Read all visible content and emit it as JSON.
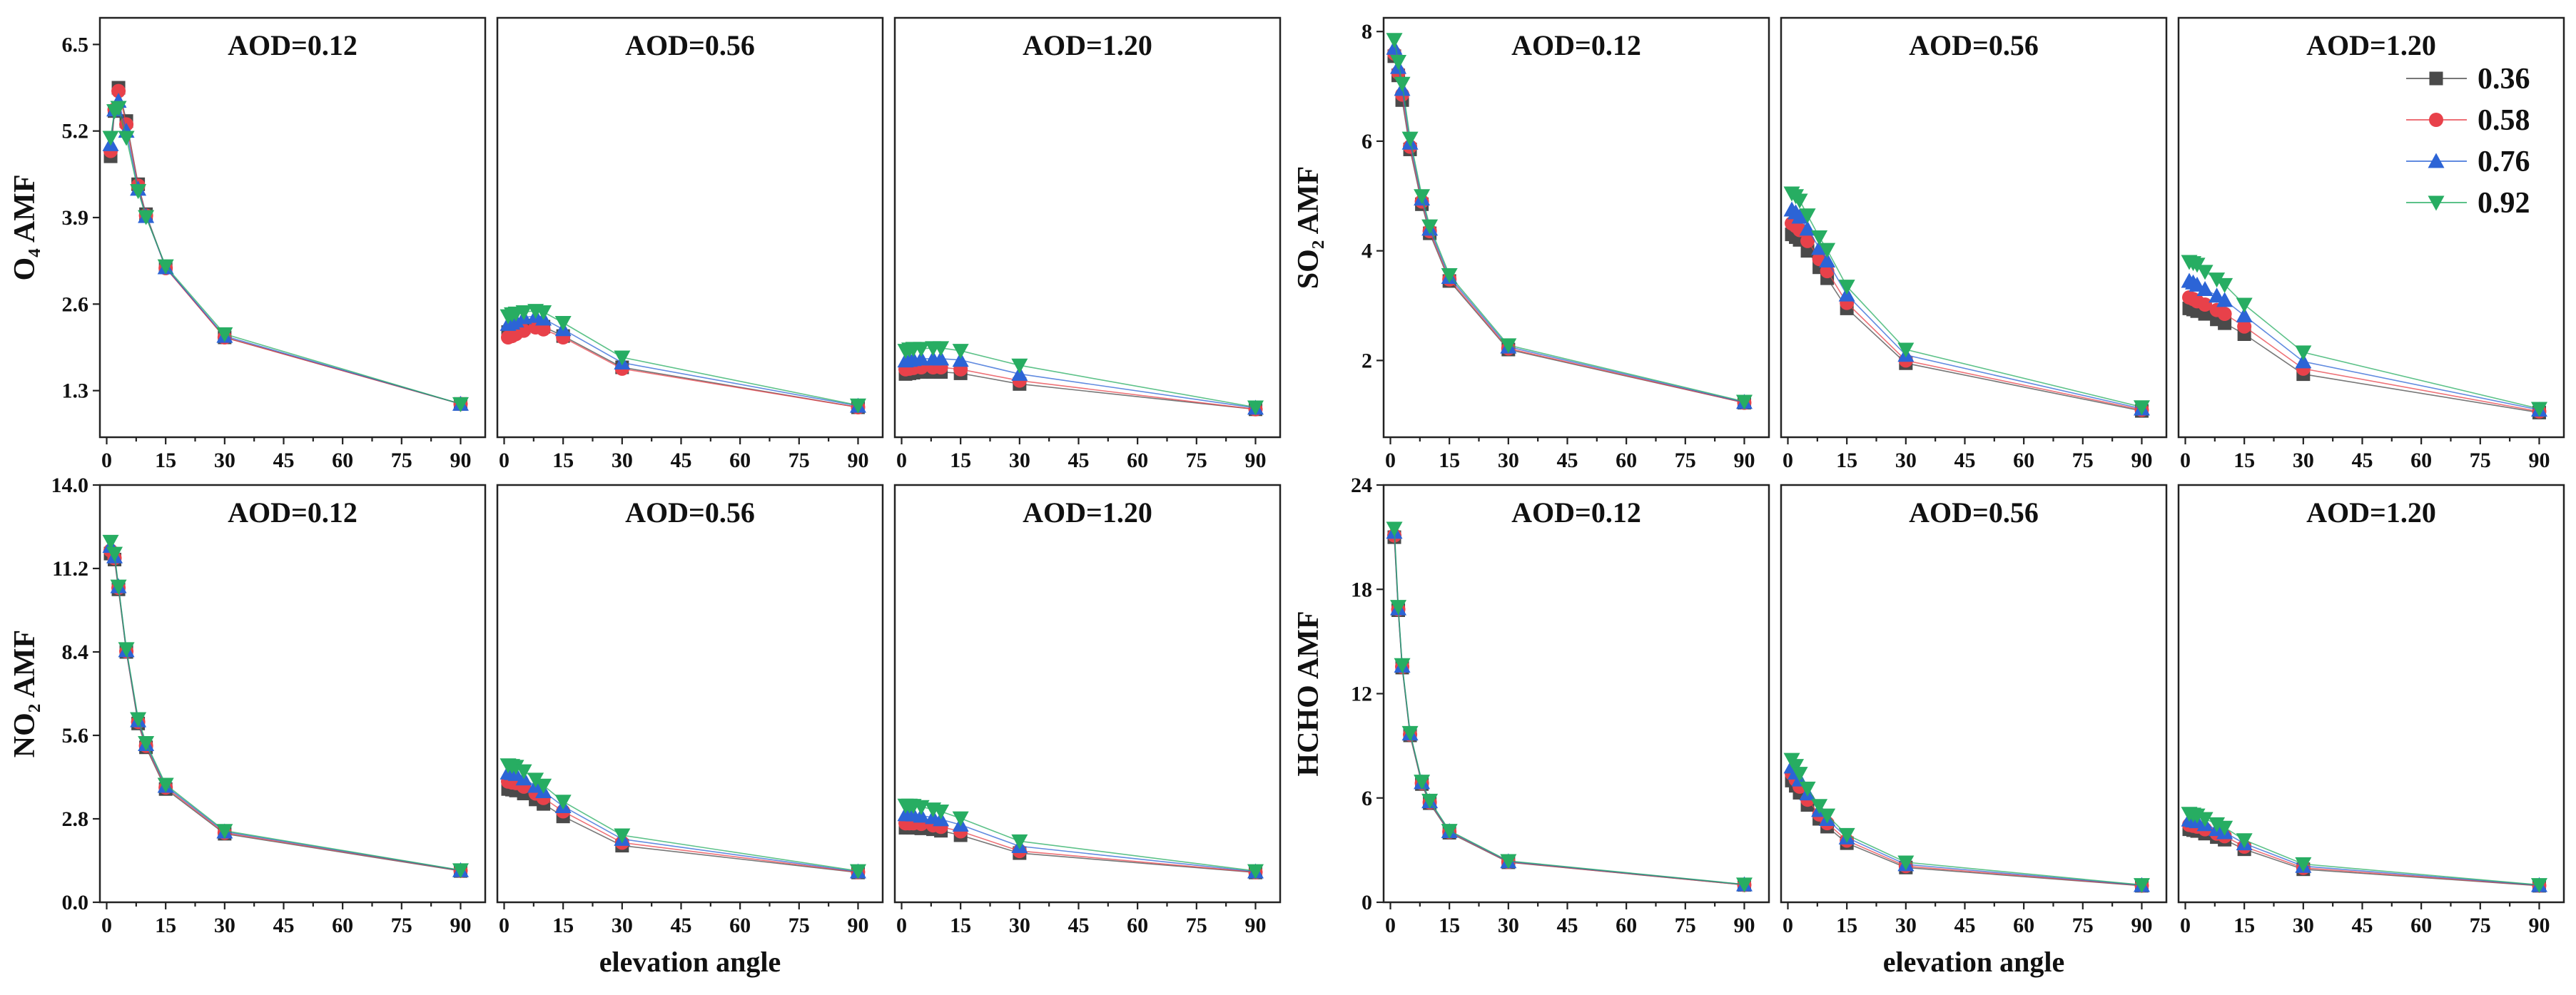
{
  "figure": {
    "xlabel": "elevation angle",
    "legend_placement": "top-right",
    "legend_labels": [
      "0.36",
      "0.58",
      "0.76",
      "0.92"
    ],
    "series_colors": [
      "#4a4a4a",
      "#e8414a",
      "#2c64d6",
      "#27ad62"
    ],
    "series_markers": [
      "square",
      "circle",
      "triangle-up",
      "triangle-down"
    ]
  },
  "chart_data": [
    {
      "type": "line",
      "group": "top-left",
      "panel": 0,
      "title": "AOD=0.12",
      "ylabel": "O₄ AMF",
      "xlabel": "",
      "xlim": [
        -1,
        93
      ],
      "ylim": [
        0.6,
        6.9
      ],
      "xticks": [
        "0",
        "15",
        "30",
        "45",
        "60",
        "75",
        "90"
      ],
      "yticks": [
        "1.3",
        "2.6",
        "3.9",
        "5.2",
        "6.5"
      ],
      "ytickvals": [
        1.3,
        2.6,
        3.9,
        5.2,
        6.5
      ],
      "x": [
        1,
        2,
        3,
        5,
        8,
        10,
        15,
        30,
        90
      ],
      "series": [
        {
          "name": "0.36",
          "values": [
            4.82,
            5.5,
            5.85,
            5.35,
            4.4,
            3.95,
            3.15,
            2.1,
            1.1
          ]
        },
        {
          "name": "0.58",
          "values": [
            4.9,
            5.52,
            5.8,
            5.3,
            4.38,
            3.93,
            3.14,
            2.1,
            1.1
          ]
        },
        {
          "name": "0.76",
          "values": [
            5.0,
            5.52,
            5.65,
            5.2,
            4.33,
            3.92,
            3.15,
            2.12,
            1.1
          ]
        },
        {
          "name": "0.92",
          "values": [
            5.1,
            5.5,
            5.55,
            5.1,
            4.3,
            3.91,
            3.17,
            2.15,
            1.1
          ]
        }
      ]
    },
    {
      "type": "line",
      "group": "top-left",
      "panel": 1,
      "title": "AOD=0.56",
      "ylabel": "",
      "xlabel": "",
      "xlim": [
        -1,
        93
      ],
      "ylim": [
        0.6,
        6.9
      ],
      "xticks": [
        "0",
        "15",
        "30",
        "45",
        "60",
        "75",
        "90"
      ],
      "yticks": [],
      "ytickvals": [],
      "x": [
        1,
        2,
        3,
        5,
        8,
        10,
        15,
        30,
        90
      ],
      "series": [
        {
          "name": "0.36",
          "values": [
            2.18,
            2.2,
            2.22,
            2.25,
            2.28,
            2.26,
            2.12,
            1.65,
            1.05
          ]
        },
        {
          "name": "0.58",
          "values": [
            2.1,
            2.12,
            2.15,
            2.2,
            2.25,
            2.22,
            2.1,
            1.63,
            1.05
          ]
        },
        {
          "name": "0.76",
          "values": [
            2.3,
            2.32,
            2.35,
            2.4,
            2.42,
            2.38,
            2.22,
            1.72,
            1.07
          ]
        },
        {
          "name": "0.92",
          "values": [
            2.42,
            2.45,
            2.46,
            2.48,
            2.5,
            2.48,
            2.32,
            1.8,
            1.08
          ]
        }
      ]
    },
    {
      "type": "line",
      "group": "top-left",
      "panel": 2,
      "title": "AOD=1.20",
      "ylabel": "",
      "xlabel": "",
      "xlim": [
        -1,
        93
      ],
      "ylim": [
        0.6,
        6.9
      ],
      "xticks": [
        "0",
        "15",
        "30",
        "45",
        "60",
        "75",
        "90"
      ],
      "yticks": [],
      "ytickvals": [],
      "x": [
        1,
        2,
        3,
        5,
        8,
        10,
        15,
        30,
        90
      ],
      "series": [
        {
          "name": "0.36",
          "values": [
            1.55,
            1.56,
            1.57,
            1.58,
            1.58,
            1.58,
            1.56,
            1.4,
            1.02
          ]
        },
        {
          "name": "0.58",
          "values": [
            1.62,
            1.63,
            1.64,
            1.65,
            1.65,
            1.65,
            1.62,
            1.45,
            1.02
          ]
        },
        {
          "name": "0.76",
          "values": [
            1.75,
            1.76,
            1.77,
            1.78,
            1.78,
            1.78,
            1.76,
            1.55,
            1.04
          ]
        },
        {
          "name": "0.92",
          "values": [
            1.9,
            1.92,
            1.93,
            1.93,
            1.94,
            1.94,
            1.9,
            1.68,
            1.05
          ]
        }
      ]
    },
    {
      "type": "line",
      "group": "top-right",
      "panel": 0,
      "title": "AOD=0.12",
      "ylabel": "SO₂ AMF",
      "xlabel": "",
      "xlim": [
        -1,
        93
      ],
      "ylim": [
        0.6,
        8.25
      ],
      "xticks": [
        "0",
        "15",
        "30",
        "45",
        "60",
        "75",
        "90"
      ],
      "yticks": [
        "2",
        "4",
        "6",
        "8"
      ],
      "ytickvals": [
        2,
        4,
        6,
        8
      ],
      "x": [
        1,
        2,
        3,
        5,
        8,
        10,
        15,
        30,
        90
      ],
      "series": [
        {
          "name": "0.36",
          "values": [
            7.55,
            7.2,
            6.75,
            5.85,
            4.85,
            4.32,
            3.45,
            2.2,
            1.23
          ]
        },
        {
          "name": "0.58",
          "values": [
            7.6,
            7.25,
            6.85,
            5.9,
            4.9,
            4.36,
            3.48,
            2.22,
            1.23
          ]
        },
        {
          "name": "0.76",
          "values": [
            7.7,
            7.35,
            6.95,
            5.97,
            4.95,
            4.4,
            3.52,
            2.25,
            1.24
          ]
        },
        {
          "name": "0.92",
          "values": [
            7.85,
            7.45,
            7.05,
            6.05,
            5.0,
            4.45,
            3.56,
            2.28,
            1.25
          ]
        }
      ]
    },
    {
      "type": "line",
      "group": "top-right",
      "panel": 1,
      "title": "AOD=0.56",
      "ylabel": "",
      "xlabel": "",
      "xlim": [
        -1,
        93
      ],
      "ylim": [
        0.6,
        8.25
      ],
      "xticks": [
        "0",
        "15",
        "30",
        "45",
        "60",
        "75",
        "90"
      ],
      "yticks": [],
      "ytickvals": [],
      "x": [
        1,
        2,
        3,
        5,
        8,
        10,
        15,
        30,
        90
      ],
      "series": [
        {
          "name": "0.36",
          "values": [
            4.3,
            4.25,
            4.2,
            4.0,
            3.7,
            3.5,
            2.95,
            1.95,
            1.08
          ]
        },
        {
          "name": "0.58",
          "values": [
            4.5,
            4.45,
            4.38,
            4.18,
            3.85,
            3.63,
            3.05,
            2.0,
            1.1
          ]
        },
        {
          "name": "0.76",
          "values": [
            4.75,
            4.7,
            4.62,
            4.4,
            4.05,
            3.82,
            3.2,
            2.1,
            1.12
          ]
        },
        {
          "name": "0.92",
          "values": [
            5.05,
            5.0,
            4.92,
            4.65,
            4.25,
            4.02,
            3.35,
            2.2,
            1.15
          ]
        }
      ]
    },
    {
      "type": "line",
      "group": "top-right",
      "panel": 2,
      "title": "AOD=1.20",
      "ylabel": "",
      "xlabel": "",
      "xlim": [
        -1,
        93
      ],
      "ylim": [
        0.6,
        8.25
      ],
      "xticks": [
        "0",
        "15",
        "30",
        "45",
        "60",
        "75",
        "90"
      ],
      "yticks": [],
      "ytickvals": [],
      "x": [
        1,
        2,
        3,
        5,
        8,
        10,
        15,
        30,
        90
      ],
      "series": [
        {
          "name": "0.36",
          "values": [
            2.95,
            2.93,
            2.9,
            2.85,
            2.75,
            2.68,
            2.48,
            1.75,
            1.05
          ]
        },
        {
          "name": "0.58",
          "values": [
            3.15,
            3.12,
            3.08,
            3.02,
            2.92,
            2.85,
            2.62,
            1.85,
            1.07
          ]
        },
        {
          "name": "0.76",
          "values": [
            3.45,
            3.42,
            3.38,
            3.3,
            3.18,
            3.1,
            2.82,
            1.98,
            1.1
          ]
        },
        {
          "name": "0.92",
          "values": [
            3.8,
            3.78,
            3.75,
            3.62,
            3.48,
            3.38,
            3.02,
            2.15,
            1.12
          ]
        }
      ]
    },
    {
      "type": "line",
      "group": "bottom-left",
      "panel": 0,
      "title": "AOD=0.12",
      "ylabel": "NO₂ AMF",
      "xlabel": "elevation angle",
      "xlim": [
        -1,
        93
      ],
      "ylim": [
        0,
        14
      ],
      "xticks": [
        "0",
        "15",
        "30",
        "45",
        "60",
        "75",
        "90"
      ],
      "yticks": [
        "0.0",
        "2.8",
        "5.6",
        "8.4",
        "11.2",
        "14.0"
      ],
      "ytickvals": [
        0,
        2.8,
        5.6,
        8.4,
        11.2,
        14
      ],
      "x": [
        1,
        2,
        3,
        5,
        8,
        10,
        15,
        30,
        90
      ],
      "series": [
        {
          "name": "0.36",
          "values": [
            11.7,
            11.5,
            10.5,
            8.4,
            6.0,
            5.2,
            3.8,
            2.3,
            1.05
          ]
        },
        {
          "name": "0.58",
          "values": [
            11.8,
            11.55,
            10.55,
            8.42,
            6.05,
            5.25,
            3.85,
            2.33,
            1.06
          ]
        },
        {
          "name": "0.76",
          "values": [
            11.95,
            11.6,
            10.6,
            8.45,
            6.1,
            5.3,
            3.9,
            2.37,
            1.07
          ]
        },
        {
          "name": "0.92",
          "values": [
            12.1,
            11.7,
            10.6,
            8.5,
            6.15,
            5.35,
            3.95,
            2.4,
            1.08
          ]
        }
      ]
    },
    {
      "type": "line",
      "group": "bottom-left",
      "panel": 1,
      "title": "AOD=0.56",
      "ylabel": "",
      "xlabel": "elevation angle",
      "xlim": [
        -1,
        93
      ],
      "ylim": [
        0,
        14
      ],
      "xticks": [
        "0",
        "15",
        "30",
        "45",
        "60",
        "75",
        "90"
      ],
      "yticks": [],
      "ytickvals": [],
      "x": [
        1,
        2,
        3,
        5,
        8,
        10,
        15,
        30,
        90
      ],
      "series": [
        {
          "name": "0.36",
          "values": [
            3.8,
            3.78,
            3.75,
            3.65,
            3.45,
            3.3,
            2.88,
            1.9,
            1.0
          ]
        },
        {
          "name": "0.58",
          "values": [
            4.05,
            4.02,
            4.0,
            3.88,
            3.65,
            3.5,
            3.05,
            2.0,
            1.01
          ]
        },
        {
          "name": "0.76",
          "values": [
            4.35,
            4.33,
            4.3,
            4.15,
            3.9,
            3.72,
            3.22,
            2.12,
            1.03
          ]
        },
        {
          "name": "0.92",
          "values": [
            4.6,
            4.58,
            4.55,
            4.4,
            4.12,
            3.92,
            3.38,
            2.25,
            1.05
          ]
        }
      ]
    },
    {
      "type": "line",
      "group": "bottom-left",
      "panel": 2,
      "title": "AOD=1.20",
      "ylabel": "",
      "xlabel": "elevation angle",
      "xlim": [
        -1,
        93
      ],
      "ylim": [
        0,
        14
      ],
      "xticks": [
        "0",
        "15",
        "30",
        "45",
        "60",
        "75",
        "90"
      ],
      "yticks": [],
      "ytickvals": [],
      "x": [
        1,
        2,
        3,
        5,
        8,
        10,
        15,
        30,
        90
      ],
      "series": [
        {
          "name": "0.36",
          "values": [
            2.5,
            2.5,
            2.5,
            2.48,
            2.45,
            2.4,
            2.25,
            1.65,
            1.0
          ]
        },
        {
          "name": "0.58",
          "values": [
            2.65,
            2.65,
            2.65,
            2.63,
            2.58,
            2.53,
            2.38,
            1.72,
            1.01
          ]
        },
        {
          "name": "0.76",
          "values": [
            2.95,
            2.95,
            2.94,
            2.9,
            2.85,
            2.78,
            2.6,
            1.88,
            1.03
          ]
        },
        {
          "name": "0.92",
          "values": [
            3.25,
            3.25,
            3.24,
            3.2,
            3.12,
            3.05,
            2.82,
            2.05,
            1.05
          ]
        }
      ]
    },
    {
      "type": "line",
      "group": "bottom-right",
      "panel": 0,
      "title": "AOD=0.12",
      "ylabel": "HCHO AMF",
      "xlabel": "elevation angle",
      "xlim": [
        -1,
        93
      ],
      "ylim": [
        0,
        24
      ],
      "xticks": [
        "0",
        "15",
        "30",
        "45",
        "60",
        "75",
        "90"
      ],
      "yticks": [
        "0",
        "6",
        "12",
        "18",
        "24"
      ],
      "ytickvals": [
        0,
        6,
        12,
        18,
        24
      ],
      "x": [
        1,
        2,
        3,
        5,
        8,
        10,
        15,
        30,
        90
      ],
      "series": [
        {
          "name": "0.36",
          "values": [
            21.0,
            16.8,
            13.5,
            9.6,
            6.8,
            5.7,
            4.0,
            2.3,
            1.0
          ]
        },
        {
          "name": "0.58",
          "values": [
            21.1,
            16.85,
            13.55,
            9.65,
            6.85,
            5.75,
            4.05,
            2.32,
            1.0
          ]
        },
        {
          "name": "0.76",
          "values": [
            21.3,
            16.9,
            13.6,
            9.7,
            6.9,
            5.8,
            4.08,
            2.35,
            1.02
          ]
        },
        {
          "name": "0.92",
          "values": [
            21.5,
            17.0,
            13.65,
            9.75,
            6.95,
            5.85,
            4.12,
            2.38,
            1.03
          ]
        }
      ]
    },
    {
      "type": "line",
      "group": "bottom-right",
      "panel": 1,
      "title": "AOD=0.56",
      "ylabel": "",
      "xlabel": "elevation angle",
      "xlim": [
        -1,
        93
      ],
      "ylim": [
        0,
        24
      ],
      "xticks": [
        "0",
        "15",
        "30",
        "45",
        "60",
        "75",
        "90"
      ],
      "yticks": [],
      "ytickvals": [],
      "x": [
        1,
        2,
        3,
        5,
        8,
        10,
        15,
        30,
        90
      ],
      "series": [
        {
          "name": "0.36",
          "values": [
            7.0,
            6.7,
            6.3,
            5.6,
            4.8,
            4.35,
            3.4,
            2.0,
            0.95
          ]
        },
        {
          "name": "0.58",
          "values": [
            7.4,
            7.05,
            6.65,
            5.9,
            5.05,
            4.55,
            3.55,
            2.08,
            0.96
          ]
        },
        {
          "name": "0.76",
          "values": [
            7.8,
            7.45,
            7.05,
            6.25,
            5.3,
            4.78,
            3.72,
            2.18,
            0.98
          ]
        },
        {
          "name": "0.92",
          "values": [
            8.2,
            7.85,
            7.4,
            6.55,
            5.55,
            5.0,
            3.88,
            2.3,
            1.0
          ]
        }
      ]
    },
    {
      "type": "line",
      "group": "bottom-right",
      "panel": 2,
      "title": "AOD=1.20",
      "ylabel": "",
      "xlabel": "elevation angle",
      "xlim": [
        -1,
        93
      ],
      "ylim": [
        0,
        24
      ],
      "xticks": [
        "0",
        "15",
        "30",
        "45",
        "60",
        "75",
        "90"
      ],
      "yticks": [],
      "ytickvals": [],
      "x": [
        1,
        2,
        3,
        5,
        8,
        10,
        15,
        30,
        90
      ],
      "series": [
        {
          "name": "0.36",
          "values": [
            4.2,
            4.15,
            4.1,
            3.95,
            3.75,
            3.6,
            3.05,
            1.9,
            0.95
          ]
        },
        {
          "name": "0.58",
          "values": [
            4.45,
            4.4,
            4.35,
            4.2,
            3.95,
            3.8,
            3.2,
            1.98,
            0.96
          ]
        },
        {
          "name": "0.76",
          "values": [
            4.75,
            4.7,
            4.65,
            4.48,
            4.2,
            4.02,
            3.38,
            2.08,
            0.98
          ]
        },
        {
          "name": "0.92",
          "values": [
            5.1,
            5.05,
            5.0,
            4.8,
            4.5,
            4.3,
            3.58,
            2.2,
            1.0
          ]
        }
      ]
    }
  ]
}
